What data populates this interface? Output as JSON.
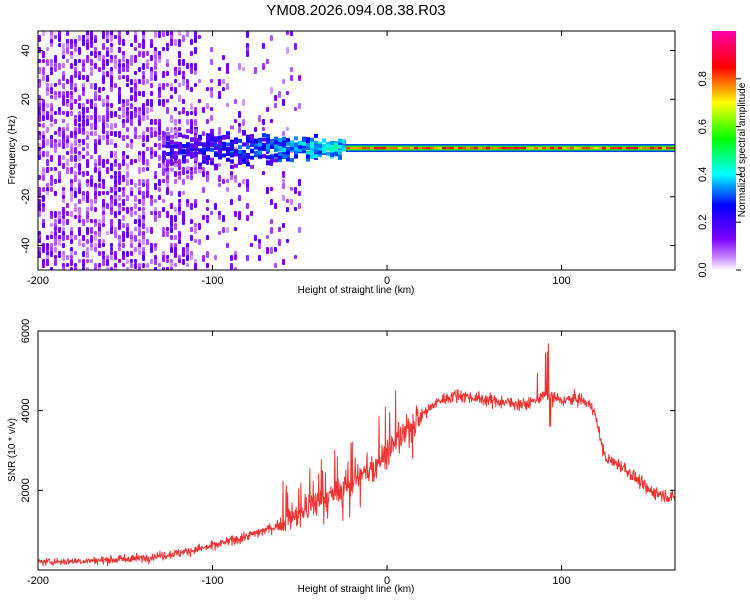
{
  "title": "YM08.2026.094.08.38.R03",
  "chart_data": [
    {
      "type": "heatmap",
      "xlabel": "Height of straight line (km)",
      "ylabel": "Frequency (Hz)",
      "xlim": [
        -200,
        165
      ],
      "ylim": [
        -50,
        48
      ],
      "xticks": [
        -200,
        -100,
        0,
        100
      ],
      "xtick_labels": [
        "-200",
        "-100",
        "0",
        "100"
      ],
      "yticks": [
        -40,
        -20,
        0,
        20,
        40
      ],
      "ytick_labels": [
        "-40",
        "-20",
        "0",
        "20",
        "40"
      ],
      "colorbar": {
        "label": "Normalized spectral amplitude",
        "range": [
          0,
          1
        ],
        "ticks": [
          0,
          0.2,
          0.4,
          0.6,
          0.8
        ],
        "tick_labels": [
          "0.0",
          "0.2",
          "0.4",
          "0.6",
          "0.8"
        ],
        "colormap": [
          "#ffffff",
          "#8000ff",
          "#0000ff",
          "#00ffff",
          "#00ff00",
          "#ffff00",
          "#ff0000",
          "#ff00aa"
        ]
      },
      "features": {
        "noise_region_x": [
          -200,
          -50
        ],
        "broadening_x": [
          -130,
          -25
        ],
        "narrow_band_x": [
          -25,
          165
        ],
        "center_frequency": 0
      }
    },
    {
      "type": "line",
      "xlabel": "Height of straight line (km)",
      "ylabel": "SNR (10 * v/v)",
      "xlim": [
        -200,
        165
      ],
      "ylim": [
        0,
        6000
      ],
      "xticks": [
        -200,
        -100,
        0,
        100
      ],
      "xtick_labels": [
        "-200",
        "-100",
        "0",
        "100"
      ],
      "yticks": [
        2000,
        4000,
        6000
      ],
      "ytick_labels": [
        "2000",
        "4000",
        "6000"
      ],
      "color": "#ee3333",
      "series": [
        {
          "name": "SNR",
          "x": [
            -200,
            -180,
            -160,
            -140,
            -120,
            -100,
            -80,
            -60,
            -50,
            -40,
            -30,
            -20,
            -10,
            0,
            10,
            20,
            30,
            40,
            60,
            80,
            90,
            100,
            110,
            118,
            125,
            135,
            150,
            165
          ],
          "y": [
            200,
            220,
            250,
            300,
            420,
            600,
            850,
            1150,
            1400,
            1700,
            1900,
            2200,
            2500,
            3000,
            3400,
            3900,
            4250,
            4400,
            4250,
            4150,
            4400,
            4250,
            4300,
            4100,
            2800,
            2600,
            2000,
            1800
          ]
        }
      ]
    }
  ]
}
